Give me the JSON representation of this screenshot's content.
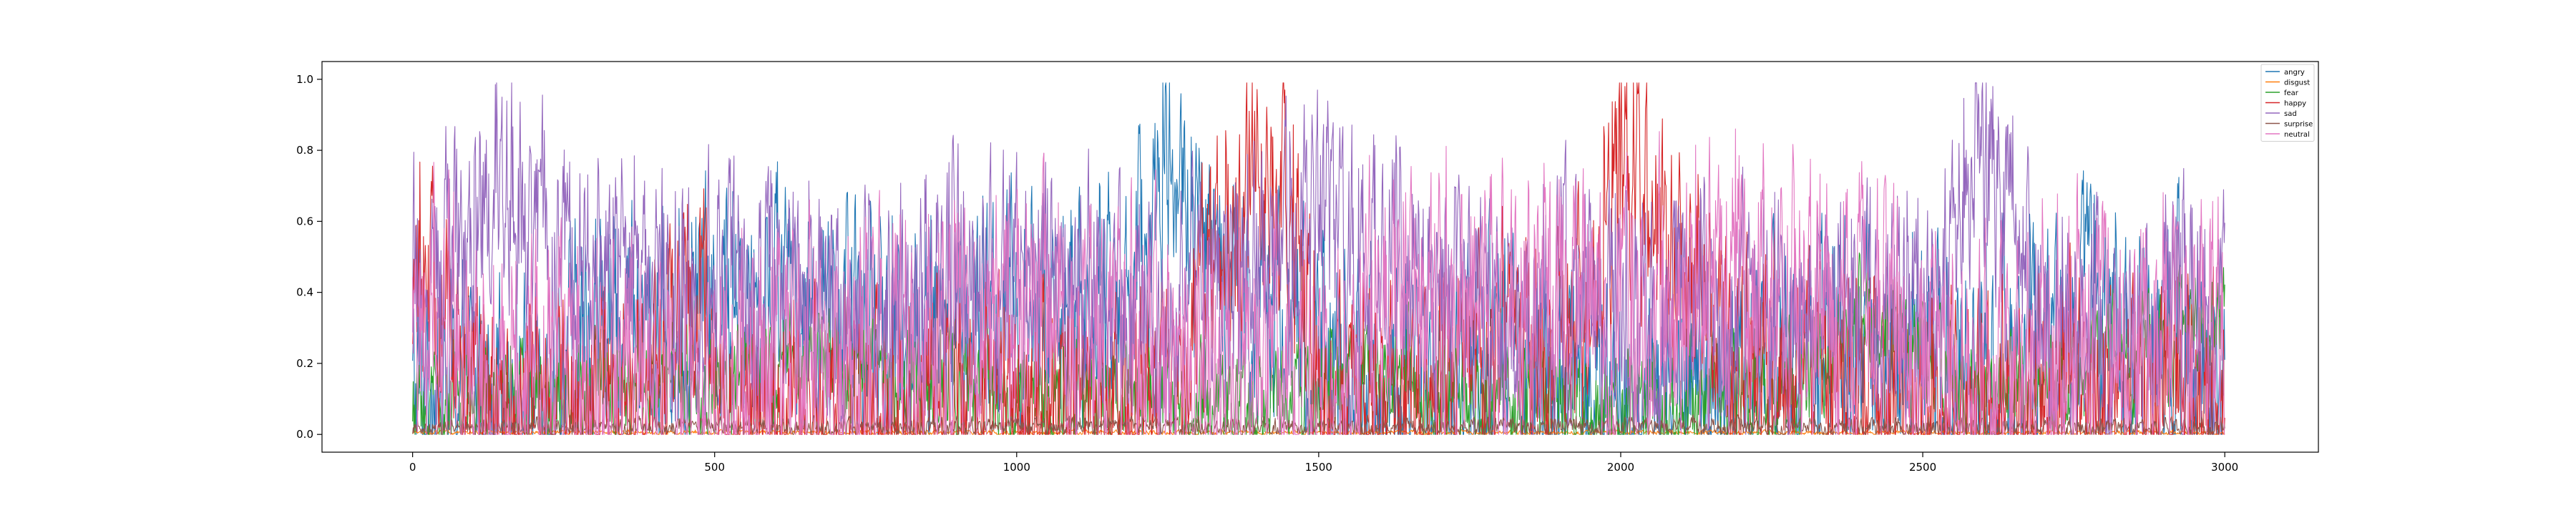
{
  "chart_data": {
    "type": "line",
    "title": "",
    "xlabel": "",
    "ylabel": "",
    "xlim": [
      -150,
      3155
    ],
    "ylim": [
      -0.05,
      1.05
    ],
    "n_points": 3001,
    "x_ticks": [
      0,
      500,
      1000,
      1500,
      2000,
      2500,
      3000
    ],
    "y_ticks": [
      0.0,
      0.2,
      0.4,
      0.6,
      0.8,
      1.0
    ],
    "x_tick_labels": [
      "0",
      "500",
      "1000",
      "1500",
      "2000",
      "2500",
      "3000"
    ],
    "y_tick_labels": [
      "0.0",
      "0.2",
      "0.4",
      "0.6",
      "0.8",
      "1.0"
    ],
    "grid": false,
    "legend_position": "top-right",
    "series": [
      {
        "name": "angry",
        "color": "#1f77b4",
        "x": [
          0,
          100,
          200,
          300,
          400,
          500,
          600,
          700,
          800,
          900,
          1000,
          1100,
          1200,
          1250,
          1300,
          1400,
          1500,
          1600,
          1700,
          1800,
          1900,
          2000,
          2100,
          2200,
          2300,
          2400,
          2500,
          2600,
          2700,
          2800,
          2900,
          3000
        ],
        "y": [
          0.1,
          0.15,
          0.12,
          0.3,
          0.25,
          0.35,
          0.4,
          0.3,
          0.25,
          0.3,
          0.35,
          0.3,
          0.45,
          0.8,
          0.5,
          0.35,
          0.25,
          0.1,
          0.15,
          0.2,
          0.1,
          0.05,
          0.1,
          0.15,
          0.2,
          0.25,
          0.2,
          0.15,
          0.25,
          0.35,
          0.3,
          0.25
        ],
        "amplitude": 0.25
      },
      {
        "name": "disgust",
        "color": "#ff7f0e",
        "x": [
          0,
          500,
          1000,
          1500,
          2000,
          2500,
          3000
        ],
        "y": [
          0.005,
          0.005,
          0.005,
          0.005,
          0.005,
          0.005,
          0.005
        ],
        "amplitude": 0.005
      },
      {
        "name": "fear",
        "color": "#2ca02c",
        "x": [
          0,
          100,
          200,
          300,
          400,
          500,
          600,
          700,
          800,
          900,
          1000,
          1100,
          1200,
          1300,
          1400,
          1500,
          1600,
          1700,
          1800,
          1900,
          2000,
          2100,
          2200,
          2300,
          2400,
          2500,
          2600,
          2700,
          2800,
          2900,
          3000
        ],
        "y": [
          0.05,
          0.1,
          0.1,
          0.12,
          0.15,
          0.12,
          0.2,
          0.18,
          0.15,
          0.12,
          0.1,
          0.12,
          0.1,
          0.08,
          0.05,
          0.1,
          0.2,
          0.1,
          0.08,
          0.06,
          0.05,
          0.08,
          0.1,
          0.15,
          0.3,
          0.25,
          0.1,
          0.15,
          0.2,
          0.25,
          0.35
        ],
        "amplitude": 0.12
      },
      {
        "name": "happy",
        "color": "#d62728",
        "x": [
          0,
          20,
          50,
          100,
          200,
          300,
          400,
          480,
          500,
          600,
          700,
          800,
          900,
          1000,
          1100,
          1200,
          1300,
          1350,
          1400,
          1450,
          1500,
          1600,
          1700,
          1800,
          1900,
          1950,
          2000,
          2050,
          2100,
          2200,
          2300,
          2400,
          2500,
          2600,
          2700,
          2800,
          2900,
          3000
        ],
        "y": [
          0.35,
          0.5,
          0.3,
          0.1,
          0.05,
          0.05,
          0.05,
          0.4,
          0.05,
          0.05,
          0.05,
          0.05,
          0.05,
          0.05,
          0.05,
          0.05,
          0.3,
          0.6,
          0.7,
          0.6,
          0.05,
          0.03,
          0.1,
          0.25,
          0.15,
          0.4,
          0.7,
          0.6,
          0.4,
          0.2,
          0.15,
          0.1,
          0.05,
          0.05,
          0.1,
          0.08,
          0.06,
          0.05
        ],
        "amplitude": 0.25
      },
      {
        "name": "sad",
        "color": "#9467bd",
        "x": [
          0,
          100,
          140,
          200,
          300,
          400,
          500,
          600,
          700,
          800,
          900,
          1000,
          1100,
          1200,
          1250,
          1300,
          1400,
          1500,
          1600,
          1700,
          1800,
          1900,
          2000,
          2100,
          2200,
          2300,
          2400,
          2500,
          2600,
          2650,
          2700,
          2800,
          2900,
          3000
        ],
        "y": [
          0.45,
          0.5,
          0.75,
          0.55,
          0.5,
          0.45,
          0.4,
          0.35,
          0.3,
          0.3,
          0.4,
          0.45,
          0.4,
          0.35,
          0.2,
          0.4,
          0.45,
          0.6,
          0.55,
          0.35,
          0.3,
          0.35,
          0.3,
          0.35,
          0.3,
          0.3,
          0.35,
          0.3,
          0.75,
          0.7,
          0.25,
          0.3,
          0.3,
          0.3
        ],
        "amplitude": 0.25
      },
      {
        "name": "surprise",
        "color": "#8c564b",
        "x": [
          0,
          500,
          1000,
          1500,
          2000,
          2500,
          3000
        ],
        "y": [
          0.02,
          0.02,
          0.02,
          0.02,
          0.02,
          0.02,
          0.02
        ],
        "amplitude": 0.02
      },
      {
        "name": "neutral",
        "color": "#e377c2",
        "x": [
          0,
          50,
          100,
          200,
          300,
          400,
          500,
          600,
          700,
          800,
          900,
          1000,
          1100,
          1200,
          1300,
          1400,
          1500,
          1550,
          1600,
          1650,
          1700,
          1800,
          1900,
          2000,
          2100,
          2200,
          2300,
          2400,
          2500,
          2600,
          2700,
          2800,
          2900,
          3000
        ],
        "y": [
          0.2,
          0.35,
          0.1,
          0.15,
          0.1,
          0.1,
          0.1,
          0.15,
          0.15,
          0.2,
          0.25,
          0.3,
          0.25,
          0.2,
          0.2,
          0.15,
          0.05,
          0.05,
          0.4,
          0.35,
          0.35,
          0.35,
          0.4,
          0.3,
          0.35,
          0.4,
          0.35,
          0.3,
          0.25,
          0.1,
          0.2,
          0.25,
          0.3,
          0.25
        ],
        "amplitude": 0.3
      }
    ]
  }
}
